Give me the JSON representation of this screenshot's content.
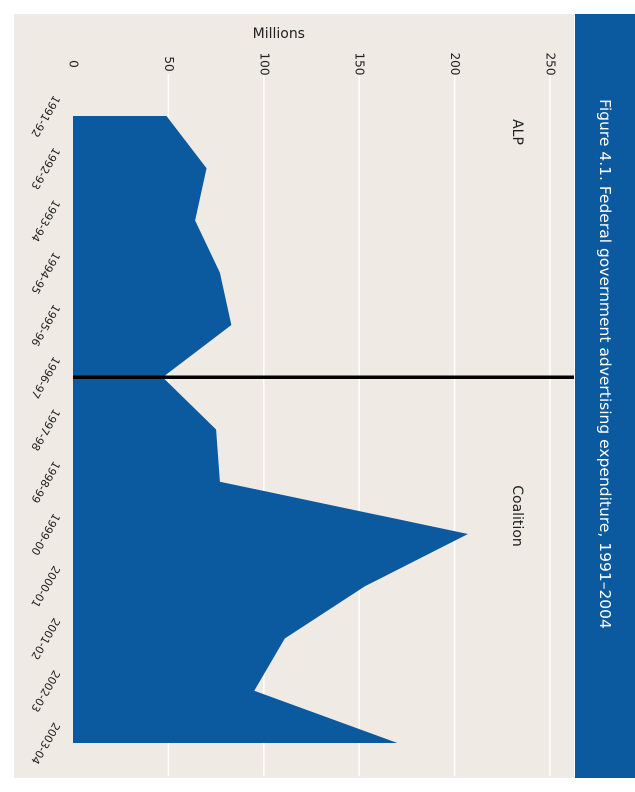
{
  "figure": {
    "title": "Figure 4.1. Federal government advertising expenditure, 1991–2004"
  },
  "colors": {
    "background": "#efebe4",
    "title_band": "#0b5a9f",
    "area_fill": "#0b5a9f",
    "divider": "#000000",
    "gridline": "#ffffff"
  },
  "chart_data": {
    "type": "area",
    "orientation": "rotated-90-clockwise",
    "title": "Figure 4.1. Federal government advertising expenditure, 1991–2004",
    "ylabel": "Millions",
    "xlabel": "",
    "ylim": [
      0,
      250
    ],
    "yticks": [
      0,
      50,
      100,
      150,
      200,
      250
    ],
    "grid": true,
    "categories": [
      "1991-92",
      "1992-93",
      "1993-94",
      "1994-95",
      "1995-96",
      "1996-97",
      "1997-98",
      "1998-99",
      "1999-00",
      "2000-01",
      "2001-02",
      "2002-03",
      "2003-04"
    ],
    "values": [
      49,
      70,
      64,
      77,
      83,
      47,
      75,
      77,
      207,
      153,
      111,
      95,
      170
    ],
    "divider": {
      "category": "1996-97"
    },
    "annotations": [
      {
        "text": "ALP",
        "period": "before"
      },
      {
        "text": "Coalition",
        "period": "after"
      }
    ]
  }
}
